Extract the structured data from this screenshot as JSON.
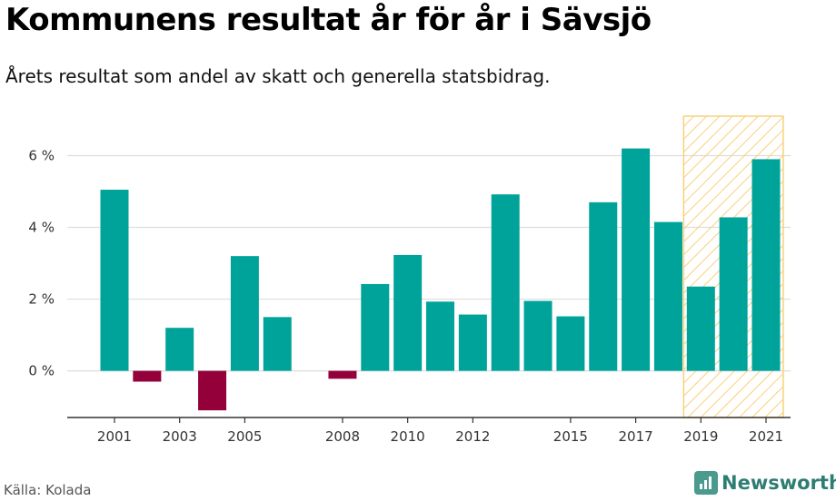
{
  "header": {
    "title": "Kommunens resultat år för år i Sävsjö",
    "subtitle": "Årets resultat som andel av skatt och generella statsbidrag."
  },
  "footer": {
    "source": "Källa: Kolada",
    "brand": "Newsworthy"
  },
  "colors": {
    "positive": "#00a39a",
    "negative": "#93003a",
    "highlight_stroke": "#f9d07a",
    "grid": "#dddddd"
  },
  "chart_data": {
    "type": "bar",
    "title": "Kommunens resultat år för år i Sävsjö",
    "subtitle": "Årets resultat som andel av skatt och generella statsbidrag.",
    "xlabel": "",
    "ylabel": "",
    "categories": [
      "2001",
      "2002",
      "2003",
      "2004",
      "2005",
      "2006",
      "2007",
      "2008",
      "2009",
      "2010",
      "2011",
      "2012",
      "2013",
      "2014",
      "2015",
      "2016",
      "2017",
      "2018",
      "2019",
      "2020",
      "2021"
    ],
    "values": [
      5.05,
      -0.3,
      1.2,
      -1.1,
      3.2,
      1.5,
      null,
      -0.22,
      2.42,
      3.23,
      1.93,
      1.57,
      4.92,
      1.95,
      1.52,
      4.7,
      6.2,
      4.15,
      2.35,
      4.28,
      5.9
    ],
    "ylim": [
      -1.3,
      7.1
    ],
    "yticks": [
      0,
      2,
      4,
      6
    ],
    "ytick_labels": [
      "0 %",
      "2 %",
      "4 %",
      "6 %"
    ],
    "xtick_labels": [
      "2001",
      "2003",
      "2005",
      "2008",
      "2010",
      "2012",
      "2015",
      "2017",
      "2019",
      "2021"
    ],
    "highlight_range": [
      "2019",
      "2021"
    ],
    "grid": true,
    "legend": "none"
  }
}
